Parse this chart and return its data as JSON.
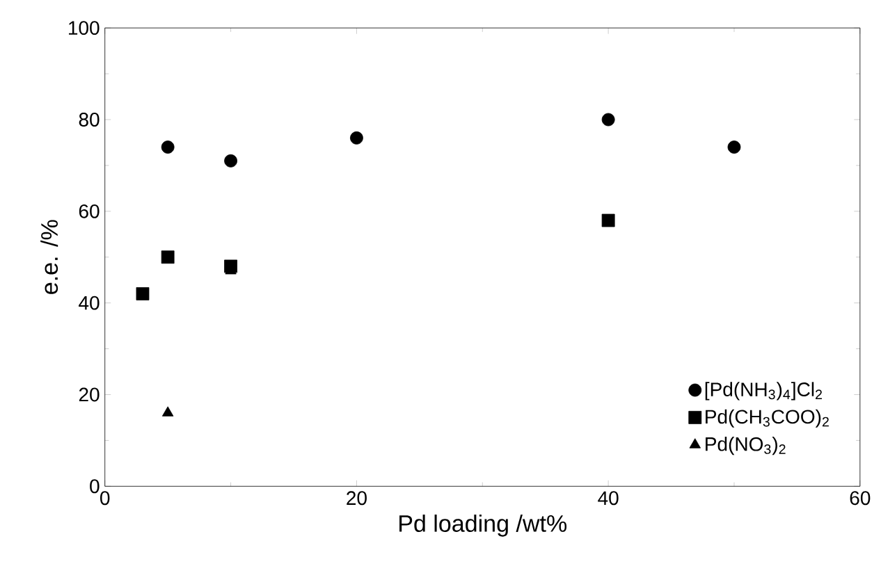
{
  "chart_data": {
    "type": "scatter",
    "xlabel": "Pd loading /wt%",
    "ylabel": "e.e. /%",
    "xlim": [
      0,
      60
    ],
    "xticks": [
      0,
      20,
      40,
      60
    ],
    "ylim": [
      0,
      100
    ],
    "yticks": [
      0,
      20,
      40,
      60,
      80,
      100
    ],
    "grid": false,
    "legend": "bottom right",
    "series": [
      {
        "name": "[Pd(NH$_{3}$)$_{4}$]Cl$_{2}$",
        "color": "#000000",
        "marker": "circle",
        "x": [
          5,
          10,
          20,
          40,
          50
        ],
        "values": [
          74,
          71,
          76,
          80,
          74
        ]
      },
      {
        "name": "Pd(CH$_{3}$COO)$_{2}$",
        "color": "#000000",
        "marker": "square",
        "x": [
          3,
          5,
          10,
          40
        ],
        "values": [
          42,
          50,
          48,
          58
        ]
      },
      {
        "name": "Pd(NO$_{3}$)$_{2}$",
        "color": "#000000",
        "marker": "triangle",
        "x": [
          5,
          10
        ],
        "values": [
          16,
          47
        ]
      }
    ]
  }
}
